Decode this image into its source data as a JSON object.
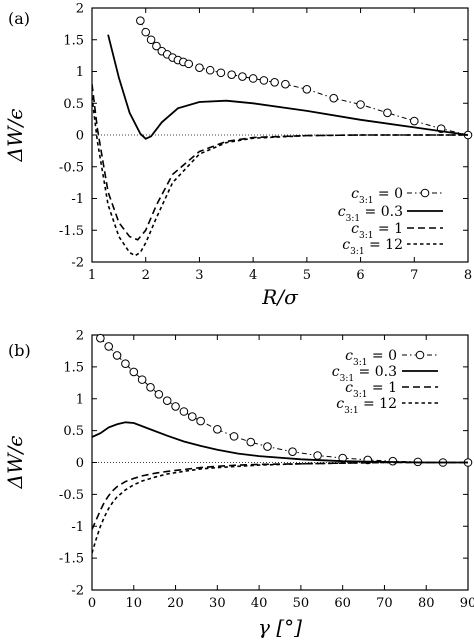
{
  "chart_data": [
    {
      "panel_label": "(a)",
      "type": "line",
      "xlabel": "R/σ",
      "ylabel": "ΔW/ϵ",
      "xlim": [
        1,
        8
      ],
      "ylim": [
        -2,
        2
      ],
      "xticks": [
        1,
        2,
        3,
        4,
        5,
        6,
        7,
        8
      ],
      "yticks": [
        -2,
        -1.5,
        -1,
        -0.5,
        0,
        0.5,
        1,
        1.5,
        2
      ],
      "ytick_labels": [
        "-2",
        "-1.5",
        "-1",
        "-0.5",
        "0",
        "0.5",
        "1",
        "1.5",
        "2"
      ],
      "legend_position": "bottom-right",
      "series": [
        {
          "name": "c3:1 = 0",
          "style": "dash-dot-circles",
          "x": [
            1.9,
            2.0,
            2.1,
            2.2,
            2.3,
            2.4,
            2.5,
            2.6,
            2.7,
            2.8,
            3.0,
            3.2,
            3.4,
            3.6,
            3.8,
            4.0,
            4.2,
            4.4,
            4.6,
            5.0,
            5.5,
            6.0,
            6.5,
            7.0,
            7.5,
            8.0
          ],
          "y": [
            1.8,
            1.62,
            1.5,
            1.4,
            1.32,
            1.27,
            1.22,
            1.18,
            1.15,
            1.12,
            1.06,
            1.02,
            0.98,
            0.95,
            0.92,
            0.89,
            0.86,
            0.83,
            0.8,
            0.72,
            0.58,
            0.48,
            0.35,
            0.22,
            0.1,
            0.0
          ]
        },
        {
          "name": "c3:1 = 0.3",
          "style": "solid",
          "x": [
            1.3,
            1.5,
            1.7,
            1.9,
            2.0,
            2.1,
            2.3,
            2.6,
            3.0,
            3.5,
            4.0,
            5.0,
            6.0,
            7.0,
            8.0
          ],
          "y": [
            1.58,
            0.9,
            0.35,
            0.02,
            -0.06,
            -0.02,
            0.2,
            0.42,
            0.52,
            0.54,
            0.5,
            0.38,
            0.24,
            0.12,
            0.0
          ]
        },
        {
          "name": "c3:1 = 1",
          "style": "long-dash",
          "x": [
            1.0,
            1.1,
            1.3,
            1.5,
            1.7,
            1.85,
            2.0,
            2.2,
            2.5,
            3.0,
            3.5,
            4.0,
            5.0,
            6.0,
            8.0
          ],
          "y": [
            0.8,
            0.1,
            -0.9,
            -1.38,
            -1.6,
            -1.65,
            -1.5,
            -1.1,
            -0.62,
            -0.26,
            -0.1,
            -0.04,
            -0.01,
            0.0,
            0.0
          ]
        },
        {
          "name": "c3:1 = 12",
          "style": "short-dash",
          "x": [
            1.0,
            1.1,
            1.3,
            1.5,
            1.7,
            1.8,
            1.9,
            2.0,
            2.2,
            2.5,
            3.0,
            3.5,
            4.0,
            5.0,
            6.0,
            8.0
          ],
          "y": [
            0.6,
            -0.1,
            -1.1,
            -1.6,
            -1.85,
            -1.9,
            -1.85,
            -1.7,
            -1.3,
            -0.75,
            -0.3,
            -0.12,
            -0.05,
            -0.01,
            0.0,
            0.0
          ]
        }
      ]
    },
    {
      "panel_label": "(b)",
      "type": "line",
      "xlabel": "γ [°]",
      "ylabel": "ΔW/ϵ",
      "xlim": [
        0,
        90
      ],
      "ylim": [
        -2,
        2
      ],
      "xticks": [
        0,
        10,
        20,
        30,
        40,
        50,
        60,
        70,
        80,
        90
      ],
      "yticks": [
        -2,
        -1.5,
        -1,
        -0.5,
        0,
        0.5,
        1,
        1.5,
        2
      ],
      "ytick_labels": [
        "-2",
        "-1.5",
        "-1",
        "-0.5",
        "0",
        "0.5",
        "1",
        "1.5",
        "2"
      ],
      "legend_position": "top-right",
      "series": [
        {
          "name": "c3:1 = 0",
          "style": "dash-dot-circles",
          "x": [
            2,
            4,
            6,
            8,
            10,
            12,
            14,
            16,
            18,
            20,
            22,
            24,
            26,
            30,
            34,
            38,
            42,
            48,
            54,
            60,
            66,
            72,
            78,
            84,
            90
          ],
          "y": [
            1.95,
            1.82,
            1.68,
            1.55,
            1.42,
            1.3,
            1.18,
            1.07,
            0.97,
            0.88,
            0.8,
            0.72,
            0.65,
            0.52,
            0.41,
            0.32,
            0.25,
            0.17,
            0.11,
            0.07,
            0.04,
            0.02,
            0.01,
            0.0,
            0.0
          ]
        },
        {
          "name": "c3:1 = 0.3",
          "style": "solid",
          "x": [
            0,
            2,
            4,
            6,
            8,
            10,
            14,
            18,
            22,
            26,
            30,
            35,
            40,
            50,
            60,
            70,
            80,
            90
          ],
          "y": [
            0.4,
            0.46,
            0.55,
            0.6,
            0.63,
            0.62,
            0.52,
            0.42,
            0.33,
            0.26,
            0.2,
            0.14,
            0.1,
            0.05,
            0.02,
            0.01,
            0.0,
            0.0
          ]
        },
        {
          "name": "c3:1 = 1",
          "style": "long-dash",
          "x": [
            0,
            1,
            2,
            3,
            4,
            5,
            6,
            8,
            10,
            12,
            15,
            18,
            22,
            26,
            30,
            35,
            40,
            50,
            60,
            70,
            90
          ],
          "y": [
            -1.05,
            -0.9,
            -0.75,
            -0.62,
            -0.52,
            -0.44,
            -0.38,
            -0.3,
            -0.25,
            -0.21,
            -0.17,
            -0.14,
            -0.11,
            -0.08,
            -0.06,
            -0.04,
            -0.03,
            -0.02,
            -0.01,
            0.0,
            0.0
          ]
        },
        {
          "name": "c3:1 = 12",
          "style": "short-dash",
          "x": [
            0,
            1,
            2,
            3,
            4,
            5,
            6,
            8,
            10,
            12,
            15,
            18,
            22,
            26,
            30,
            35,
            40,
            50,
            60,
            70,
            90
          ],
          "y": [
            -1.42,
            -1.2,
            -1.0,
            -0.85,
            -0.72,
            -0.62,
            -0.54,
            -0.43,
            -0.35,
            -0.29,
            -0.23,
            -0.18,
            -0.14,
            -0.1,
            -0.08,
            -0.06,
            -0.04,
            -0.02,
            -0.01,
            0.0,
            0.0
          ]
        }
      ]
    }
  ]
}
